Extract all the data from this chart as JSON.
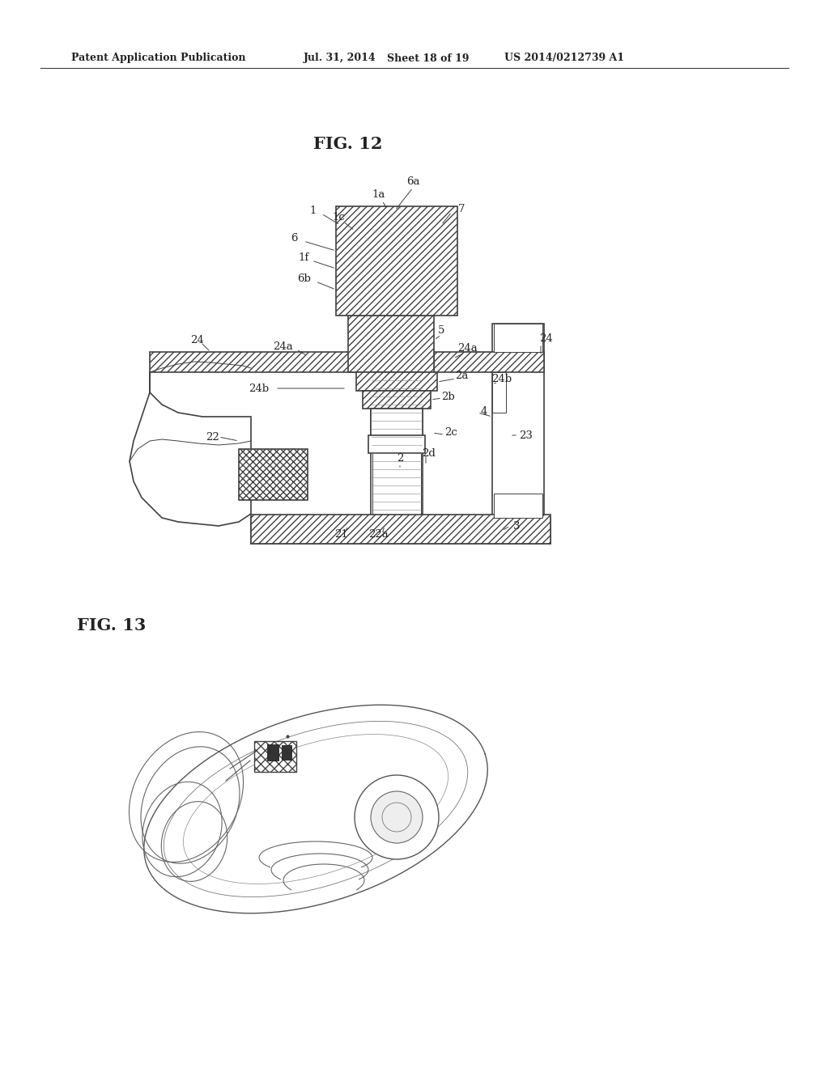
{
  "background_color": "#ffffff",
  "fig_width": 10.24,
  "fig_height": 13.2,
  "header_text": "Patent Application Publication",
  "header_date": "Jul. 31, 2014",
  "header_sheet": "Sheet 18 of 19",
  "header_patent": "US 2014/0212739 A1",
  "fig12_label": "FIG. 12",
  "fig13_label": "FIG. 13",
  "line_color": "#404040",
  "text_color": "#222222",
  "hatch_color": "#555555",
  "header_fontsize": 9.0,
  "fig_label_fontsize": 15,
  "label_fontsize": 9.5,
  "dpi": 100
}
